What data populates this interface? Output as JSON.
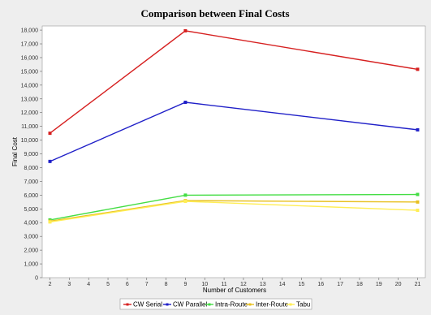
{
  "chart_data": {
    "type": "line",
    "title": "Comparison between Final Costs",
    "xlabel": "Number of Customers",
    "ylabel": "Final Cost",
    "x_ticks": [
      2,
      3,
      4,
      5,
      6,
      7,
      8,
      9,
      10,
      11,
      12,
      13,
      14,
      15,
      16,
      17,
      18,
      19,
      20,
      21
    ],
    "y_ticks": [
      "0",
      "1,000",
      "2,000",
      "3,000",
      "4,000",
      "5,000",
      "6,000",
      "7,000",
      "8,000",
      "9,000",
      "10,000",
      "11,000",
      "12,000",
      "13,000",
      "14,000",
      "15,000",
      "16,000",
      "17,000",
      "18,000"
    ],
    "xlim": [
      1.6,
      21.4
    ],
    "ylim": [
      0,
      18300
    ],
    "grid": false,
    "legend_position": "bottom",
    "x": [
      2,
      9,
      21
    ],
    "series": [
      {
        "name": "CW Serial",
        "color": "#d62020",
        "values": [
          10500,
          17950,
          15150
        ]
      },
      {
        "name": "CW Parallel",
        "color": "#2020c8",
        "values": [
          8450,
          12750,
          10750
        ]
      },
      {
        "name": "Intra-Route",
        "color": "#44dd44",
        "values": [
          4200,
          6000,
          6050
        ]
      },
      {
        "name": "Inter-Route",
        "color": "#e8c020",
        "values": [
          4100,
          5600,
          5500
        ]
      },
      {
        "name": "Tabu",
        "color": "#ffee55",
        "values": [
          4050,
          5550,
          4900
        ]
      }
    ]
  }
}
